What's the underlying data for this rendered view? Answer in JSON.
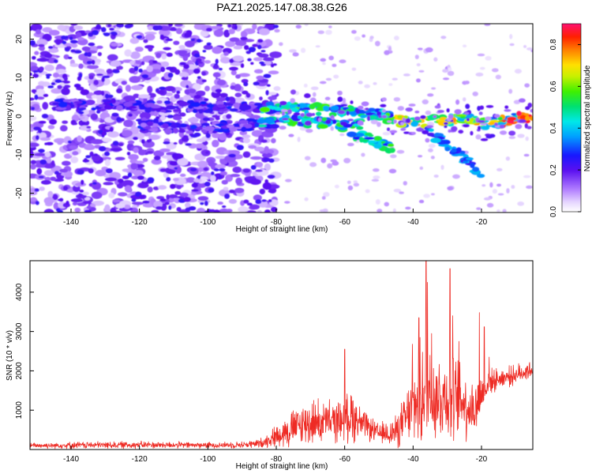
{
  "title": "PAZ1.2025.147.08.38.G26",
  "chart_data": [
    {
      "type": "heatmap",
      "xlabel": "Height of straight line (km)",
      "ylabel": "Frequency (Hz)",
      "xlim": [
        -152,
        -5
      ],
      "ylim": [
        -25,
        24
      ],
      "x_ticks": [
        -140,
        -120,
        -100,
        -80,
        -60,
        -40,
        -20
      ],
      "y_ticks": [
        -20,
        -10,
        0,
        10,
        20
      ],
      "colorbar": {
        "label": "Normalized spectral amplitude",
        "range": [
          0.0,
          0.9
        ],
        "ticks": [
          0.0,
          0.2,
          0.4,
          0.6,
          0.8
        ]
      },
      "ridges": [
        {
          "x": [
            -145,
            -130,
            -115,
            -105,
            -95,
            -85,
            -75,
            -70,
            -65,
            -60,
            -55,
            -50,
            -45,
            -40,
            -35,
            -30,
            -25,
            -20,
            -15,
            -10,
            -5
          ],
          "y": [
            3,
            3,
            2.5,
            2.5,
            2.5,
            2,
            2,
            2,
            1.5,
            1.5,
            1,
            0.5,
            -1,
            -1.5,
            -1.5,
            -1,
            -0.5,
            -2,
            -1.5,
            -0.5,
            0
          ]
        },
        {
          "x": [
            -120,
            -110,
            -100,
            -90,
            -82,
            -75,
            -68,
            -60,
            -55
          ],
          "y": [
            -2,
            -3,
            -3,
            -2.5,
            -1.5,
            -1,
            -1.5,
            -2.5,
            -2
          ]
        },
        {
          "x": [
            -58,
            -52,
            -48,
            -46
          ],
          "y": [
            -5,
            -6,
            -7.5,
            -8
          ]
        },
        {
          "x": [
            -36,
            -32,
            -28,
            -24,
            -20
          ],
          "y": [
            -4,
            -6,
            -8.5,
            -11.5,
            -15
          ]
        }
      ]
    },
    {
      "type": "line",
      "xlabel": "Height of straight line (km)",
      "ylabel": "SNR (10 * v/v)",
      "xlim": [
        -152,
        -5
      ],
      "ylim": [
        0,
        4800
      ],
      "x_ticks": [
        -140,
        -120,
        -100,
        -80,
        -60,
        -40,
        -20
      ],
      "y_ticks": [
        1000,
        2000,
        3000,
        4000
      ],
      "envelope": {
        "x": [
          -152,
          -140,
          -120,
          -100,
          -90,
          -85,
          -82,
          -80,
          -75,
          -70,
          -65,
          -60,
          -58,
          -55,
          -50,
          -45,
          -42,
          -40,
          -38,
          -36,
          -34,
          -32,
          -30,
          -28,
          -26,
          -24,
          -22,
          -20,
          -18,
          -15,
          -10,
          -5
        ],
        "base": [
          100,
          110,
          120,
          110,
          120,
          150,
          250,
          350,
          550,
          700,
          700,
          750,
          900,
          650,
          400,
          450,
          800,
          1100,
          1300,
          1600,
          1400,
          1300,
          1400,
          1200,
          1300,
          1100,
          1000,
          1400,
          1700,
          1800,
          1900,
          2050
        ],
        "amp": [
          80,
          100,
          110,
          90,
          100,
          140,
          220,
          350,
          600,
          700,
          650,
          600,
          900,
          450,
          300,
          500,
          800,
          1200,
          1600,
          1800,
          1500,
          1400,
          1400,
          1300,
          1200,
          1000,
          900,
          700,
          400,
          300,
          300,
          300
        ]
      },
      "peaks": [
        {
          "x": -60,
          "y": 2550
        },
        {
          "x": -40.2,
          "y": 2680
        },
        {
          "x": -38.3,
          "y": 3350
        },
        {
          "x": -36.2,
          "y": 4850
        },
        {
          "x": -35.8,
          "y": 4250
        },
        {
          "x": -34.6,
          "y": 2950
        },
        {
          "x": -29.2,
          "y": 4600
        },
        {
          "x": -28.4,
          "y": 3400
        },
        {
          "x": -26.6,
          "y": 2750
        },
        {
          "x": -20.6,
          "y": 3480
        },
        {
          "x": -19.2,
          "y": 3120
        },
        {
          "x": -17.8,
          "y": 2350
        }
      ]
    }
  ]
}
